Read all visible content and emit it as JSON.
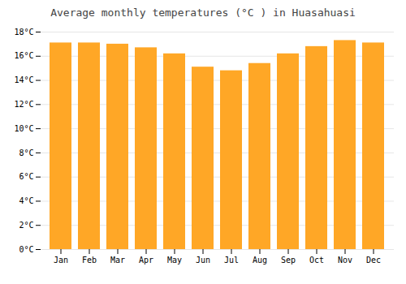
{
  "chart_data": {
    "type": "bar",
    "title": "Average monthly temperatures (°C ) in Huasahuasi",
    "categories": [
      "Jan",
      "Feb",
      "Mar",
      "Apr",
      "May",
      "Jun",
      "Jul",
      "Aug",
      "Sep",
      "Oct",
      "Nov",
      "Dec"
    ],
    "values": [
      17.1,
      17.1,
      17.0,
      16.7,
      16.2,
      15.1,
      14.8,
      15.4,
      16.2,
      16.8,
      17.3,
      17.1
    ],
    "color": "#FFA726",
    "ylim": [
      0,
      18
    ],
    "yticks": [
      {
        "value": 0,
        "label": "0°C"
      },
      {
        "value": 2,
        "label": "2°C"
      },
      {
        "value": 4,
        "label": "4°C"
      },
      {
        "value": 6,
        "label": "6°C"
      },
      {
        "value": 8,
        "label": "8°C"
      },
      {
        "value": 10,
        "label": "10°C"
      },
      {
        "value": 12,
        "label": "12°C"
      },
      {
        "value": 14,
        "label": "14°C"
      },
      {
        "value": 16,
        "label": "16°C"
      },
      {
        "value": 18,
        "label": "18°C"
      }
    ],
    "grid": true
  }
}
